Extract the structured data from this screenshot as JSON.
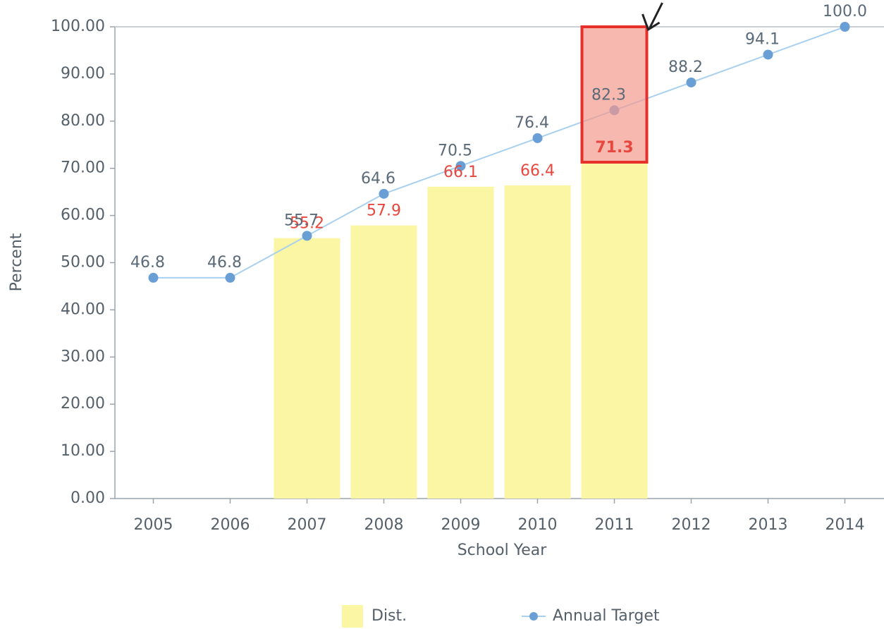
{
  "chart_data": {
    "type": "combo",
    "x_label": "School Year",
    "y_label": "Percent",
    "categories": [
      "2005",
      "2006",
      "2007",
      "2008",
      "2009",
      "2010",
      "2011",
      "2012",
      "2013",
      "2014"
    ],
    "series": [
      {
        "name": "Dist.",
        "type": "bar",
        "color": "#fbf6a4",
        "label_color": "#e8473e",
        "values": [
          null,
          null,
          55.2,
          57.9,
          66.1,
          66.4,
          71.3,
          null,
          null,
          null
        ]
      },
      {
        "name": "Annual Target",
        "type": "line",
        "color": "#a9d0ee",
        "marker_color": "#6a9fd6",
        "label_color": "#5a6a78",
        "values": [
          46.8,
          46.8,
          55.7,
          64.6,
          70.5,
          76.4,
          82.3,
          88.2,
          94.1,
          100
        ],
        "value_labels": [
          "46.8",
          "46.8",
          "55.7",
          "64.6",
          "70.5",
          "76.4",
          "82.3",
          "88.2",
          "94.1",
          "100.0"
        ]
      }
    ],
    "ylim": [
      0,
      100
    ],
    "yticks": [
      {
        "value": 0,
        "label": "0.00"
      },
      {
        "value": 10,
        "label": "10.00"
      },
      {
        "value": 20,
        "label": "20.00"
      },
      {
        "value": 30,
        "label": "30.00"
      },
      {
        "value": 40,
        "label": "40.00"
      },
      {
        "value": 50,
        "label": "50.00"
      },
      {
        "value": 60,
        "label": "60.00"
      },
      {
        "value": 70,
        "label": "70.00"
      },
      {
        "value": 80,
        "label": "80.00"
      },
      {
        "value": 90,
        "label": "90.00"
      },
      {
        "value": 100,
        "label": "100.00"
      }
    ],
    "legend": "bottom"
  }
}
